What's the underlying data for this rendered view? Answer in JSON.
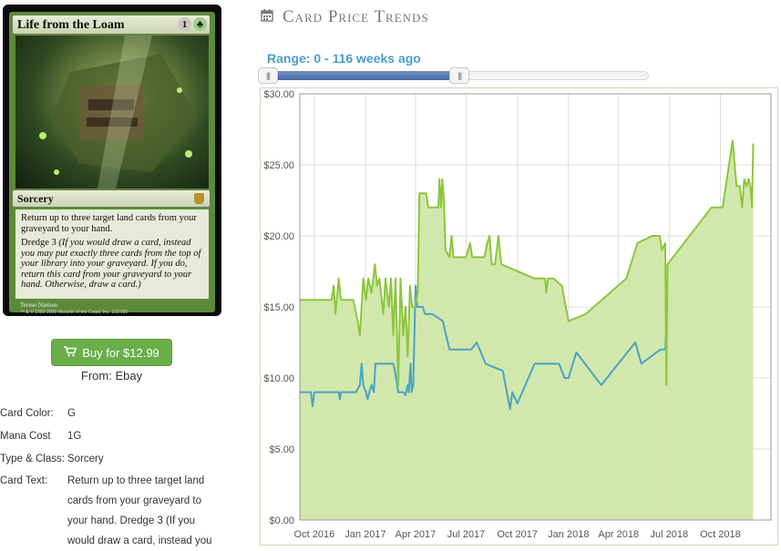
{
  "card": {
    "name": "Life from the Loam",
    "mana": [
      "1",
      "G"
    ],
    "type_line": "Sorcery",
    "rules_text": "Return up to three target land cards from your graveyard to your hand.",
    "dredge_keyword": "Dredge 3",
    "reminder_text": "(If you would draw a card, instead you may put exactly three cards from the top of your library into your graveyard. If you do, return this card from your graveyard to your hand. Otherwise, draw a card.)",
    "artist": "Terese Nielsen",
    "copyright": "™ & © 1993-2005 Wizards of the Coast, Inc. 122/165"
  },
  "buy": {
    "label": "Buy for $12.99",
    "icon": "cart-icon"
  },
  "from": "From: Ebay",
  "details": [
    {
      "label": "Card Color:",
      "value": "G"
    },
    {
      "label": "Mana Cost",
      "value": "1G"
    },
    {
      "label": "Type & Class:",
      "value": "Sorcery"
    },
    {
      "label": "Card Text:",
      "value": "Return up to three target land cards from your graveyard to your hand. Dredge 3 (If you would draw a card, instead you"
    }
  ],
  "heading": {
    "title": "Card Price Trends",
    "icon": "calendar-icon"
  },
  "range_label": "Range: 0 - 116 weeks ago",
  "slider": {
    "min": 0,
    "max": 116,
    "fill_fraction": 0.51
  },
  "chart_data": {
    "type": "area",
    "title": "",
    "xlabel": "",
    "ylabel": "",
    "ylim": [
      0,
      30
    ],
    "yticks": [
      "$0.00",
      "$5.00",
      "$10.00",
      "$15.00",
      "$20.00",
      "$25.00",
      "$30.00"
    ],
    "xticks": [
      "Oct 2016",
      "Jan 2017",
      "Apr 2017",
      "Jul 2017",
      "Oct 2017",
      "Jan 2018",
      "Apr 2018",
      "Jul 2018",
      "Oct 2018"
    ],
    "xlim": [
      "2016-09-05",
      "2018-12-31"
    ],
    "grid": true,
    "colors": {
      "high": "#8cc63f",
      "low": "#4aa3c4",
      "fill": "#cde4a3"
    },
    "series": [
      {
        "values": [
          [
            "2016-09-05",
            15.5
          ],
          [
            "2016-11-01",
            15.5
          ],
          [
            "2016-11-05",
            16.5
          ],
          [
            "2016-11-08",
            14.5
          ],
          [
            "2016-11-14",
            17.0
          ],
          [
            "2016-11-18",
            15.5
          ],
          [
            "2016-12-10",
            15.5
          ],
          [
            "2016-12-18",
            14.0
          ],
          [
            "2016-12-22",
            13.0
          ],
          [
            "2016-12-28",
            17.0
          ],
          [
            "2017-01-02",
            15.5
          ],
          [
            "2017-01-06",
            17.0
          ],
          [
            "2017-01-12",
            16.0
          ],
          [
            "2017-01-18",
            18.0
          ],
          [
            "2017-01-22",
            16.5
          ],
          [
            "2017-01-26",
            17.0
          ],
          [
            "2017-02-02",
            14.5
          ],
          [
            "2017-02-06",
            17.0
          ],
          [
            "2017-02-12",
            15.0
          ],
          [
            "2017-02-16",
            17.0
          ],
          [
            "2017-02-20",
            13.0
          ],
          [
            "2017-02-24",
            17.0
          ],
          [
            "2017-03-01",
            9.5
          ],
          [
            "2017-03-05",
            17.0
          ],
          [
            "2017-03-10",
            13.0
          ],
          [
            "2017-03-14",
            15.0
          ],
          [
            "2017-03-18",
            11.5
          ],
          [
            "2017-03-22",
            16.5
          ],
          [
            "2017-03-26",
            15.0
          ],
          [
            "2017-03-31",
            15.0
          ],
          [
            "2017-04-05",
            16.0
          ],
          [
            "2017-04-08",
            23.0
          ],
          [
            "2017-04-20",
            23.0
          ],
          [
            "2017-04-24",
            22.0
          ],
          [
            "2017-05-12",
            22.0
          ],
          [
            "2017-05-14",
            24.0
          ],
          [
            "2017-05-17",
            22.0
          ],
          [
            "2017-05-19",
            24.0
          ],
          [
            "2017-05-22",
            22.5
          ],
          [
            "2017-05-25",
            19.0
          ],
          [
            "2017-06-01",
            18.5
          ],
          [
            "2017-06-05",
            20.0
          ],
          [
            "2017-06-08",
            18.5
          ],
          [
            "2017-07-01",
            18.5
          ],
          [
            "2017-07-08",
            19.5
          ],
          [
            "2017-07-12",
            18.5
          ],
          [
            "2017-08-03",
            18.5
          ],
          [
            "2017-08-08",
            19.5
          ],
          [
            "2017-08-12",
            20.0
          ],
          [
            "2017-08-16",
            18.0
          ],
          [
            "2017-08-22",
            18.0
          ],
          [
            "2017-08-28",
            20.0
          ],
          [
            "2017-09-02",
            18.0
          ],
          [
            "2017-11-01",
            17.0
          ],
          [
            "2017-11-20",
            17.0
          ],
          [
            "2017-11-22",
            16.0
          ],
          [
            "2017-11-25",
            17.0
          ],
          [
            "2017-12-05",
            17.0
          ],
          [
            "2017-12-20",
            16.5
          ],
          [
            "2018-01-01",
            14.0
          ],
          [
            "2018-02-01",
            14.5
          ],
          [
            "2018-04-15",
            17.0
          ],
          [
            "2018-05-05",
            19.5
          ],
          [
            "2018-06-01",
            20.0
          ],
          [
            "2018-06-14",
            20.0
          ],
          [
            "2018-06-18",
            19.0
          ],
          [
            "2018-06-24",
            19.5
          ],
          [
            "2018-06-26",
            9.5
          ],
          [
            "2018-06-28",
            18.0
          ],
          [
            "2018-09-15",
            22.0
          ],
          [
            "2018-10-05",
            22.0
          ],
          [
            "2018-10-23",
            26.7
          ],
          [
            "2018-10-30",
            23.5
          ],
          [
            "2018-11-05",
            23.5
          ],
          [
            "2018-11-09",
            22.0
          ],
          [
            "2018-11-13",
            24.0
          ],
          [
            "2018-11-17",
            23.5
          ],
          [
            "2018-11-21",
            24.0
          ],
          [
            "2018-11-24",
            23.5
          ],
          [
            "2018-11-27",
            22.0
          ],
          [
            "2018-11-29",
            26.5
          ]
        ]
      },
      {
        "values": [
          [
            "2016-09-05",
            9.0
          ],
          [
            "2016-09-25",
            9.0
          ],
          [
            "2016-09-28",
            8.0
          ],
          [
            "2016-10-01",
            9.0
          ],
          [
            "2016-11-14",
            9.0
          ],
          [
            "2016-11-16",
            8.5
          ],
          [
            "2016-11-18",
            9.0
          ],
          [
            "2016-12-15",
            9.0
          ],
          [
            "2016-12-22",
            9.5
          ],
          [
            "2016-12-25",
            11.0
          ],
          [
            "2016-12-28",
            9.5
          ],
          [
            "2017-01-02",
            9.0
          ],
          [
            "2017-01-05",
            8.5
          ],
          [
            "2017-01-08",
            9.0
          ],
          [
            "2017-01-12",
            9.5
          ],
          [
            "2017-01-16",
            9.0
          ],
          [
            "2017-01-19",
            11.0
          ],
          [
            "2017-02-20",
            11.0
          ],
          [
            "2017-02-23",
            10.5
          ],
          [
            "2017-03-01",
            9.0
          ],
          [
            "2017-03-10",
            9.0
          ],
          [
            "2017-03-14",
            8.8
          ],
          [
            "2017-03-18",
            9.5
          ],
          [
            "2017-03-20",
            9.0
          ],
          [
            "2017-03-23",
            11.0
          ],
          [
            "2017-03-25",
            9.0
          ],
          [
            "2017-03-28",
            9.5
          ],
          [
            "2017-04-01",
            16.5
          ],
          [
            "2017-04-04",
            15.0
          ],
          [
            "2017-04-14",
            15.0
          ],
          [
            "2017-04-18",
            14.5
          ],
          [
            "2017-05-01",
            14.5
          ],
          [
            "2017-05-20",
            14.0
          ],
          [
            "2017-06-01",
            12.0
          ],
          [
            "2017-07-10",
            12.0
          ],
          [
            "2017-07-20",
            12.5
          ],
          [
            "2017-08-05",
            11.0
          ],
          [
            "2017-09-05",
            10.5
          ],
          [
            "2017-09-18",
            7.8
          ],
          [
            "2017-09-22",
            9.0
          ],
          [
            "2017-10-01",
            8.2
          ],
          [
            "2017-11-01",
            11.0
          ],
          [
            "2017-12-15",
            11.0
          ],
          [
            "2017-12-25",
            10.0
          ],
          [
            "2018-01-01",
            10.0
          ],
          [
            "2018-01-15",
            11.8
          ],
          [
            "2018-03-01",
            9.5
          ],
          [
            "2018-05-01",
            12.5
          ],
          [
            "2018-05-12",
            11.0
          ],
          [
            "2018-06-15",
            12.0
          ],
          [
            "2018-06-24",
            12.0
          ],
          [
            "2018-06-26",
            13.5
          ]
        ]
      }
    ]
  }
}
